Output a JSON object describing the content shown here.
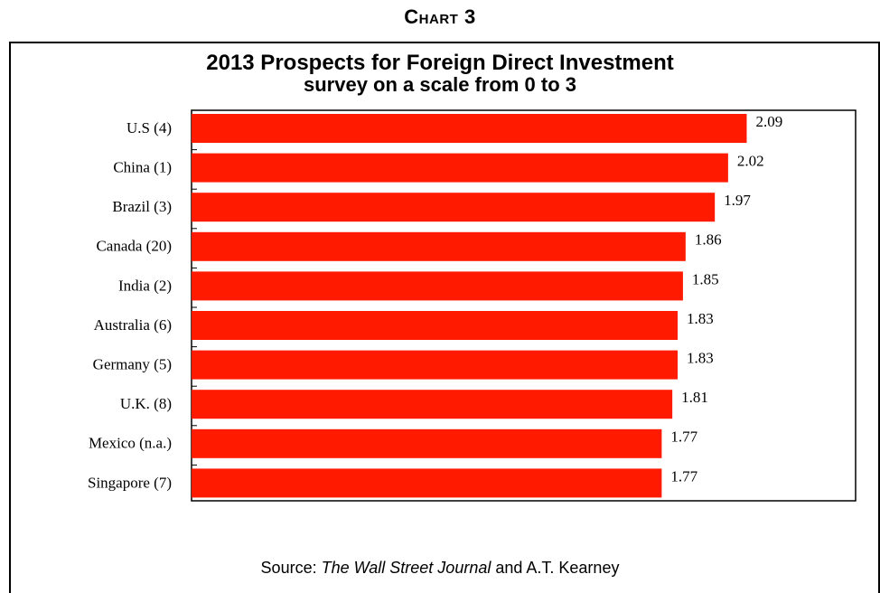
{
  "heading": "Chart 3",
  "source": {
    "prefix": "Source: ",
    "publication": "The Wall Street Journal",
    "suffix": " and A.T. Kearney"
  },
  "colors": {
    "bar": "#ff1a00",
    "frame": "#000000"
  },
  "chart_data": {
    "type": "bar",
    "orientation": "horizontal",
    "title": "2013 Prospects for Foreign Direct Investment",
    "subtitle": "survey on a scale from 0 to 3",
    "categories": [
      "U.S (4)",
      "China (1)",
      "Brazil (3)",
      "Canada (20)",
      "India (2)",
      "Australia (6)",
      "Germany (5)",
      "U.K. (8)",
      "Mexico (n.a.)",
      "Singapore (7)"
    ],
    "values": [
      2.09,
      2.02,
      1.97,
      1.86,
      1.85,
      1.83,
      1.83,
      1.81,
      1.77,
      1.77
    ],
    "value_labels": [
      "2.09",
      "2.02",
      "1.97",
      "1.86",
      "1.85",
      "1.83",
      "1.83",
      "1.81",
      "1.77",
      "1.77"
    ],
    "xlim": [
      0,
      2.5
    ],
    "grid": false,
    "legend": "none"
  }
}
